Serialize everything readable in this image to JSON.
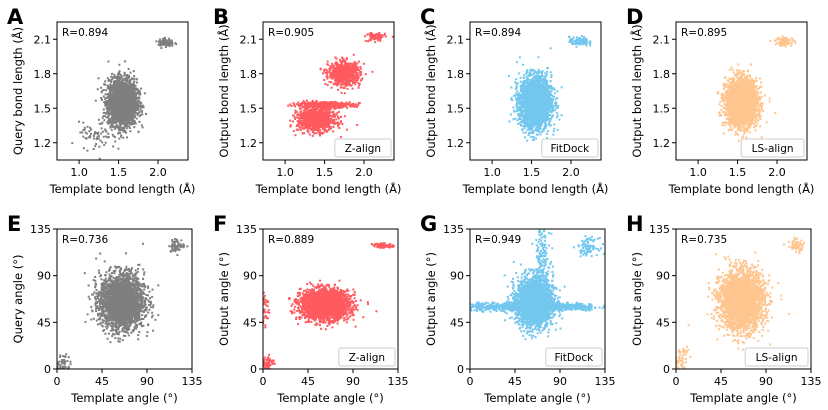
{
  "colors": {
    "gray": "#7f7f7f",
    "red": "#ff5a5f",
    "blue": "#73c7ef",
    "orange": "#ffc58e"
  },
  "chart_data": [
    {
      "type": "scatter",
      "panel": "A",
      "annotation": "R=0.894",
      "legend": "",
      "color": "gray",
      "xlabel": "Template bond length (Å)",
      "ylabel": "Query bond length (Å)",
      "xlim": [
        0.72,
        2.38
      ],
      "ylim": [
        1.05,
        2.25
      ],
      "xticks": [
        1.0,
        1.5,
        2.0
      ],
      "xtick_labels": [
        "1.0",
        "1.5",
        "2.0"
      ],
      "yticks": [
        1.2,
        1.5,
        1.8,
        2.1
      ],
      "ytick_labels": [
        "1.2",
        "1.5",
        "1.8",
        "2.1"
      ],
      "points": [
        [
          1.55,
          1.55,
          0.09,
          0.1,
          2600
        ],
        [
          2.1,
          2.07,
          0.05,
          0.02,
          80
        ],
        [
          1.2,
          1.25,
          0.1,
          0.06,
          60
        ]
      ]
    },
    {
      "type": "scatter",
      "panel": "B",
      "annotation": "R=0.905",
      "legend": "Z-align",
      "color": "red",
      "xlabel": "Template bond length (Å)",
      "ylabel": "Output bond length (Å)",
      "xlim": [
        0.72,
        2.38
      ],
      "ylim": [
        1.05,
        2.25
      ],
      "xticks": [
        1.0,
        1.5,
        2.0
      ],
      "xtick_labels": [
        "1.0",
        "1.5",
        "2.0"
      ],
      "yticks": [
        1.2,
        1.5,
        1.8,
        2.1
      ],
      "ytick_labels": [
        "1.2",
        "1.5",
        "1.8",
        "2.1"
      ],
      "points": [
        [
          1.4,
          1.4,
          0.12,
          0.05,
          900
        ],
        [
          1.5,
          1.53,
          0.18,
          0.012,
          500
        ],
        [
          1.75,
          1.8,
          0.1,
          0.05,
          700
        ],
        [
          2.15,
          2.12,
          0.06,
          0.02,
          80
        ]
      ]
    },
    {
      "type": "scatter",
      "panel": "C",
      "annotation": "R=0.894",
      "legend": "FitDock",
      "color": "blue",
      "xlabel": "Template bond length (Å)",
      "ylabel": "Output bond length (Å)",
      "xlim": [
        0.72,
        2.38
      ],
      "ylim": [
        1.05,
        2.25
      ],
      "xticks": [
        1.0,
        1.5,
        2.0
      ],
      "xtick_labels": [
        "1.0",
        "1.5",
        "2.0"
      ],
      "yticks": [
        1.2,
        1.5,
        1.8,
        2.1
      ],
      "ytick_labels": [
        "1.2",
        "1.5",
        "1.8",
        "2.1"
      ],
      "points": [
        [
          1.55,
          1.55,
          0.1,
          0.11,
          2600
        ],
        [
          2.1,
          2.08,
          0.06,
          0.02,
          100
        ]
      ]
    },
    {
      "type": "scatter",
      "panel": "D",
      "annotation": "R=0.895",
      "legend": "LS-align",
      "color": "orange",
      "xlabel": "Template bond length (Å)",
      "ylabel": "Output bond length (Å)",
      "xlim": [
        0.72,
        2.38
      ],
      "ylim": [
        1.05,
        2.25
      ],
      "xticks": [
        1.0,
        1.5,
        2.0
      ],
      "xtick_labels": [
        "1.0",
        "1.5",
        "2.0"
      ],
      "yticks": [
        1.2,
        1.5,
        1.8,
        2.1
      ],
      "ytick_labels": [
        "1.2",
        "1.5",
        "1.8",
        "2.1"
      ],
      "points": [
        [
          1.55,
          1.55,
          0.1,
          0.1,
          2600
        ],
        [
          2.1,
          2.08,
          0.06,
          0.02,
          80
        ]
      ]
    },
    {
      "type": "scatter",
      "panel": "E",
      "annotation": "R=0.736",
      "legend": "",
      "color": "gray",
      "xlabel": "Template angle (°)",
      "ylabel": "Query angle (°)",
      "xlim": [
        0,
        135
      ],
      "ylim": [
        0,
        135
      ],
      "xticks": [
        0,
        45,
        90,
        135
      ],
      "xtick_labels": [
        "0",
        "45",
        "90",
        "135"
      ],
      "yticks": [
        0,
        45,
        90,
        135
      ],
      "ytick_labels": [
        "0",
        "45",
        "90",
        "135"
      ],
      "points": [
        [
          65,
          65,
          11,
          13,
          2600
        ],
        [
          120,
          119,
          4,
          3,
          60
        ],
        [
          5,
          5,
          4,
          5,
          60
        ]
      ]
    },
    {
      "type": "scatter",
      "panel": "F",
      "annotation": "R=0.889",
      "legend": "Z-align",
      "color": "red",
      "xlabel": "Template angle (°)",
      "ylabel": "Output angle (°)",
      "xlim": [
        0,
        135
      ],
      "ylim": [
        0,
        135
      ],
      "xticks": [
        0,
        45,
        90,
        135
      ],
      "xtick_labels": [
        "0",
        "45",
        "90",
        "135"
      ],
      "yticks": [
        0,
        45,
        90,
        135
      ],
      "ytick_labels": [
        "0",
        "45",
        "90",
        "135"
      ],
      "points": [
        [
          62,
          62,
          12,
          7,
          2400
        ],
        [
          120,
          119,
          5,
          1,
          80
        ],
        [
          5,
          6,
          3,
          3,
          60
        ],
        [
          2,
          60,
          2,
          10,
          40
        ]
      ]
    },
    {
      "type": "scatter",
      "panel": "G",
      "annotation": "R=0.949",
      "legend": "FitDock",
      "color": "blue",
      "xlabel": "Template angle (°)",
      "ylabel": "Output angle (°)",
      "xlim": [
        0,
        135
      ],
      "ylim": [
        0,
        135
      ],
      "xticks": [
        0,
        45,
        90,
        135
      ],
      "xtick_labels": [
        "0",
        "45",
        "90",
        "135"
      ],
      "yticks": [
        0,
        45,
        90,
        135
      ],
      "ytick_labels": [
        "0",
        "45",
        "90",
        "135"
      ],
      "points": [
        [
          65,
          65,
          9,
          12,
          2200
        ],
        [
          60,
          60,
          35,
          2,
          900
        ],
        [
          118,
          118,
          5,
          4,
          80
        ],
        [
          72,
          110,
          4,
          15,
          120
        ]
      ]
    },
    {
      "type": "scatter",
      "panel": "H",
      "annotation": "R=0.735",
      "legend": "LS-align",
      "color": "orange",
      "xlabel": "Template angle (°)",
      "ylabel": "Output angle (°)",
      "xlim": [
        0,
        135
      ],
      "ylim": [
        0,
        135
      ],
      "xticks": [
        0,
        45,
        90,
        135
      ],
      "xtick_labels": [
        "0",
        "45",
        "90",
        "135"
      ],
      "yticks": [
        0,
        45,
        90,
        135
      ],
      "ytick_labels": [
        "0",
        "45",
        "90",
        "135"
      ],
      "points": [
        [
          66,
          66,
          11,
          14,
          2600
        ],
        [
          120,
          119,
          4,
          3,
          60
        ],
        [
          5,
          8,
          4,
          8,
          60
        ]
      ]
    }
  ]
}
